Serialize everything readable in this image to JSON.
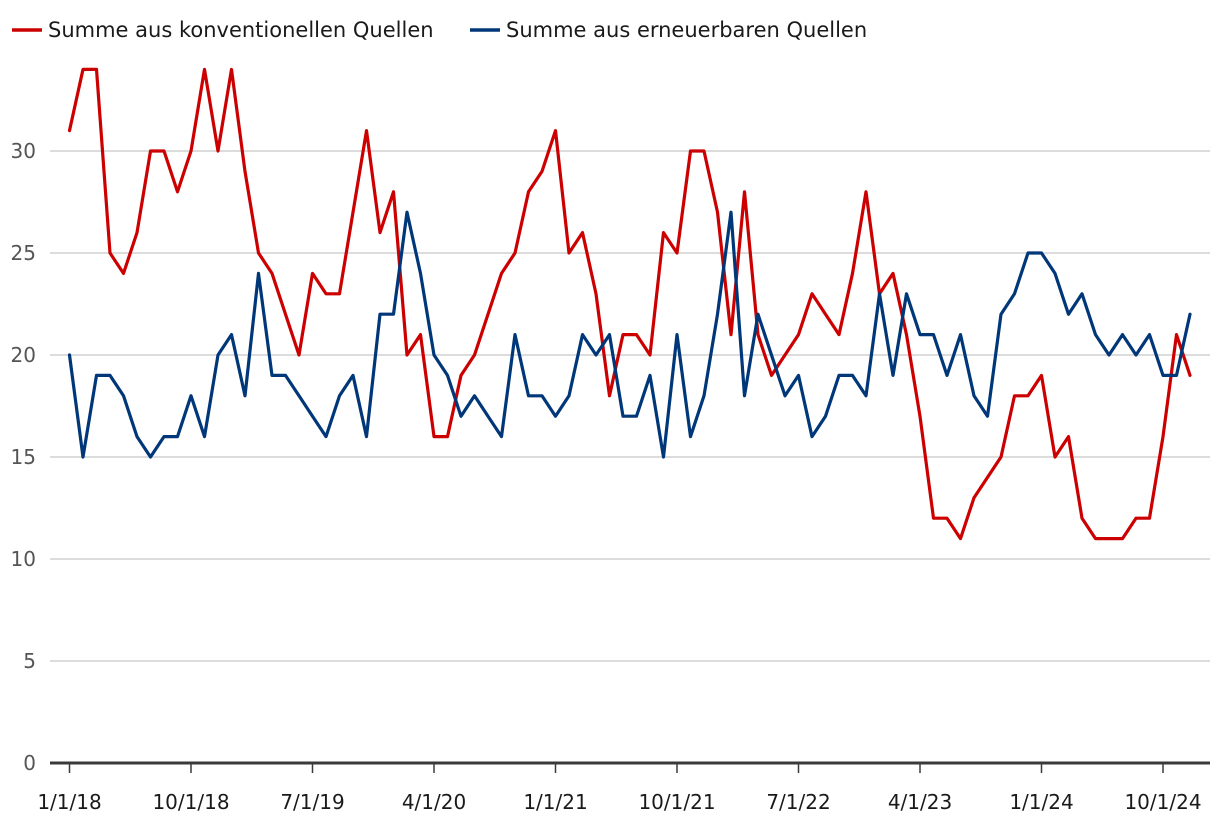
{
  "chart_data": {
    "type": "line",
    "title": "",
    "xlabel": "",
    "ylabel": "",
    "ylim": [
      0,
      34
    ],
    "yticks": [
      0,
      5,
      10,
      15,
      20,
      25,
      30
    ],
    "xtick_labels": [
      "1/1/18",
      "10/1/18",
      "7/1/19",
      "4/1/20",
      "1/1/21",
      "10/1/21",
      "7/1/22",
      "4/1/23",
      "1/1/24",
      "10/1/24"
    ],
    "xtick_month_index": [
      0,
      9,
      18,
      27,
      36,
      45,
      54,
      63,
      72,
      81
    ],
    "x_start": "1/1/18",
    "grid": true,
    "legend_position": "top-left",
    "series": [
      {
        "name": "Summe aus konventionellen Quellen",
        "color": "#cc0000",
        "values": [
          31,
          34,
          34,
          25,
          24,
          26,
          30,
          30,
          28,
          30,
          34,
          30,
          34,
          29,
          25,
          24,
          22,
          20,
          24,
          23,
          23,
          27,
          31,
          26,
          28,
          20,
          21,
          16,
          16,
          19,
          20,
          22,
          24,
          25,
          28,
          29,
          31,
          25,
          26,
          23,
          18,
          21,
          21,
          20,
          26,
          25,
          30,
          30,
          27,
          21,
          28,
          21,
          19,
          20,
          21,
          23,
          22,
          21,
          24,
          28,
          23,
          24,
          21,
          17,
          12,
          12,
          11,
          13,
          14,
          15,
          18,
          18,
          19,
          15,
          16,
          12,
          11,
          11,
          11,
          12,
          12,
          16,
          21,
          19
        ]
      },
      {
        "name": "Summe aus erneuerbaren Quellen",
        "color": "#003778",
        "values": [
          20,
          15,
          19,
          19,
          18,
          16,
          15,
          16,
          16,
          18,
          16,
          20,
          21,
          18,
          24,
          19,
          19,
          18,
          17,
          16,
          18,
          19,
          16,
          22,
          22,
          27,
          24,
          20,
          19,
          17,
          18,
          17,
          16,
          21,
          18,
          18,
          17,
          18,
          21,
          20,
          21,
          17,
          17,
          19,
          15,
          21,
          16,
          18,
          22,
          27,
          18,
          22,
          20,
          18,
          19,
          16,
          17,
          19,
          19,
          18,
          23,
          19,
          23,
          21,
          21,
          19,
          21,
          18,
          17,
          22,
          23,
          25,
          25,
          24,
          22,
          23,
          21,
          20,
          21,
          20,
          21,
          19,
          19,
          22
        ]
      }
    ]
  }
}
